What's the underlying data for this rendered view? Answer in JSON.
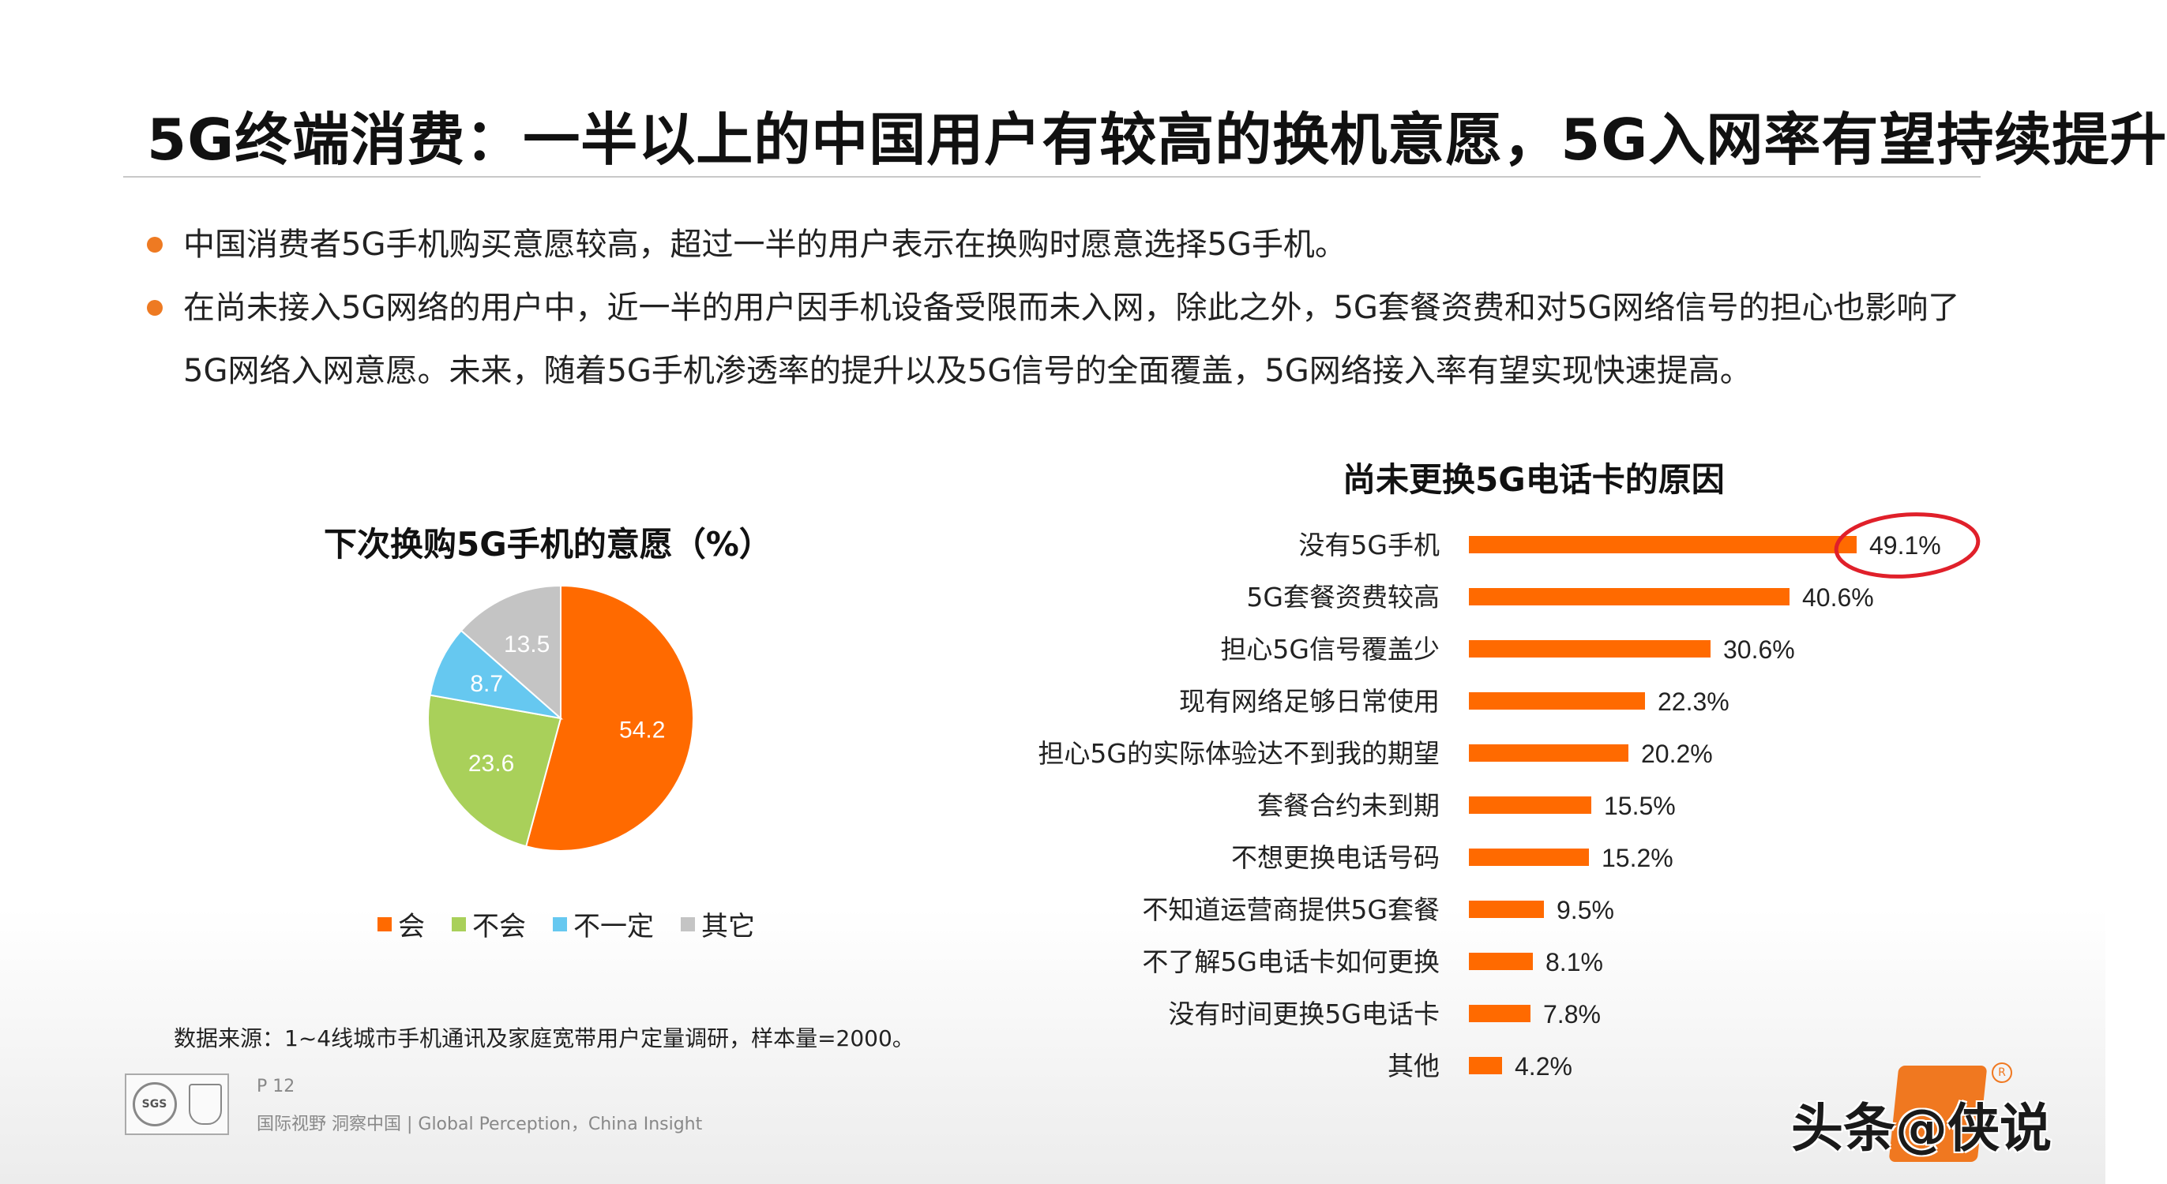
{
  "title": "5G终端消费：一半以上的中国用户有较高的换机意愿，5G入网率有望持续提升",
  "bullets": [
    "中国消费者5G手机购买意愿较高，超过一半的用户表示在换购时愿意选择5G手机。",
    "在尚未接入5G网络的用户中，近一半的用户因手机设备受限而未入网，除此之外，5G套餐资费和对5G网络信号的担心也影响了5G网络入网意愿。未来，随着5G手机渗透率的提升以及5G信号的全面覆盖，5G网络接入率有望实现快速提高。"
  ],
  "colors": {
    "accent": "#ff6a00",
    "bullet": "#ee7a22",
    "will": "#ff6a00",
    "wont": "#a9d05a",
    "unsure": "#66c8f0",
    "other": "#c4c4c4",
    "highlight_circle": "#e0202a"
  },
  "chart_data": [
    {
      "type": "pie",
      "title": "下次换购5G手机的意愿（%）",
      "series": [
        {
          "name": "会",
          "value": 54.2,
          "color": "#ff6a00"
        },
        {
          "name": "不会",
          "value": 23.6,
          "color": "#a9d05a"
        },
        {
          "name": "不一定",
          "value": 8.7,
          "color": "#66c8f0"
        },
        {
          "name": "其它",
          "value": 13.5,
          "color": "#c4c4c4"
        }
      ],
      "legend": "bottom"
    },
    {
      "type": "bar",
      "orientation": "horizontal",
      "title": "尚未更换5G电话卡的原因",
      "categories": [
        "没有5G手机",
        "5G套餐资费较高",
        "担心5G信号覆盖少",
        "现有网络足够日常使用",
        "担心5G的实际体验达不到我的期望",
        "套餐合约未到期",
        "不想更换电话号码",
        "不知道运营商提供5G套餐",
        "不了解5G电话卡如何更换",
        "没有时间更换5G电话卡",
        "其他"
      ],
      "values": [
        49.1,
        40.6,
        30.6,
        22.3,
        20.2,
        15.5,
        15.2,
        9.5,
        8.1,
        7.8,
        4.2
      ],
      "value_labels": [
        "49.1%",
        "40.6%",
        "30.6%",
        "22.3%",
        "20.2%",
        "15.5%",
        "15.2%",
        "9.5%",
        "8.1%",
        "7.8%",
        "4.2%"
      ],
      "highlighted_category": "没有5G手机",
      "xlim": [
        0,
        50
      ],
      "grid": false
    }
  ],
  "source": "数据来源：1~4线城市手机通讯及家庭宽带用户定量调研，样本量=2000。",
  "page_number": "P 12",
  "footer": "国际视野  洞察中国 |  Global Perception，China Insight",
  "cert_label": "SGS",
  "watermark": "头条@侠说"
}
